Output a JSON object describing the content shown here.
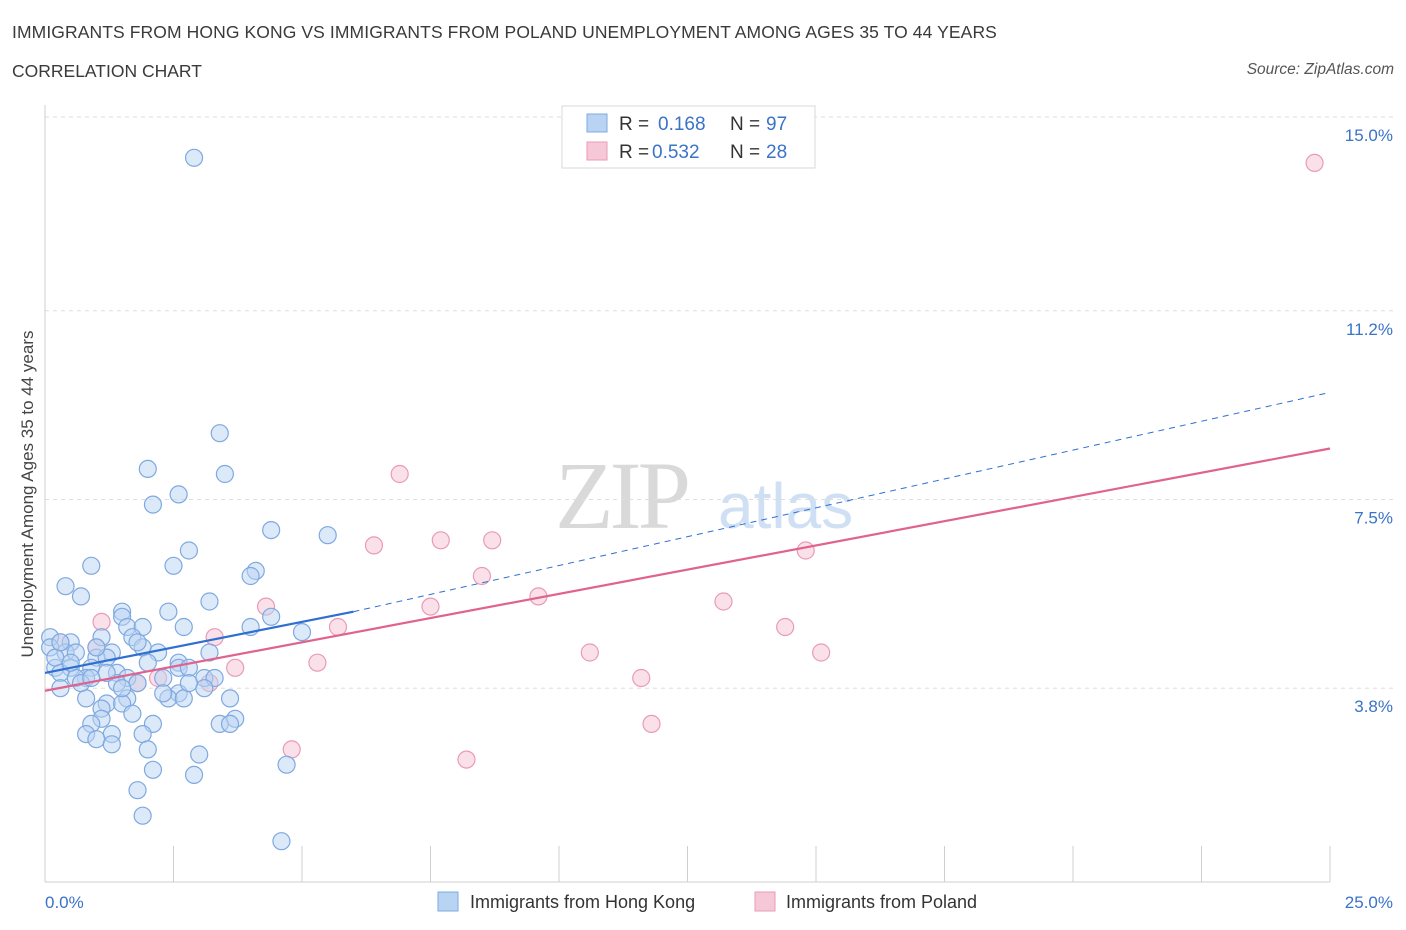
{
  "header": {
    "title": "IMMIGRANTS FROM HONG KONG VS IMMIGRANTS FROM POLAND UNEMPLOYMENT AMONG AGES 35 TO 44 YEARS",
    "subtitle": "CORRELATION CHART",
    "source": "Source: ZipAtlas.com"
  },
  "colors": {
    "hk_fill": "#b9d3f3",
    "hk_stroke": "#7ea9e0",
    "hk_line": "#2f6fd0",
    "pl_fill": "#f6c8d7",
    "pl_stroke": "#e99bb5",
    "pl_line": "#e0638e",
    "value_text": "#3a73c8"
  },
  "chart_data": {
    "type": "scatter",
    "xlabel": "",
    "ylabel": "Unemployment Among Ages 35 to 44 years",
    "xlim": [
      0,
      25
    ],
    "ylim": [
      0,
      15
    ],
    "x_tick_labels": [
      "0.0%",
      "25.0%"
    ],
    "y_ticks": [
      3.8,
      7.5,
      11.2,
      15.0
    ],
    "y_tick_labels": [
      "3.8%",
      "7.5%",
      "11.2%",
      "15.0%"
    ],
    "grid": true,
    "watermark": {
      "zip": "ZIP",
      "atlas": "atlas"
    },
    "legend_stats": [
      {
        "r_label": "R =",
        "r_value": "0.168",
        "n_label": "N =",
        "n_value": "97"
      },
      {
        "r_label": "R =",
        "r_value": "0.532",
        "n_label": "N =",
        "n_value": "28"
      }
    ],
    "series": [
      {
        "name": "Immigrants from Hong Kong",
        "points": [
          [
            2.9,
            14.2
          ],
          [
            3.4,
            8.8
          ],
          [
            2.0,
            8.1
          ],
          [
            3.5,
            8.0
          ],
          [
            2.6,
            7.6
          ],
          [
            2.1,
            7.4
          ],
          [
            4.4,
            6.9
          ],
          [
            5.5,
            6.8
          ],
          [
            2.8,
            6.5
          ],
          [
            0.9,
            6.2
          ],
          [
            2.5,
            6.2
          ],
          [
            4.1,
            6.1
          ],
          [
            4.0,
            6.0
          ],
          [
            0.4,
            5.8
          ],
          [
            0.7,
            5.6
          ],
          [
            3.2,
            5.5
          ],
          [
            1.5,
            5.3
          ],
          [
            2.4,
            5.3
          ],
          [
            1.5,
            5.2
          ],
          [
            4.4,
            5.2
          ],
          [
            1.6,
            5.0
          ],
          [
            1.9,
            5.0
          ],
          [
            2.7,
            5.0
          ],
          [
            4.0,
            5.0
          ],
          [
            5.0,
            4.9
          ],
          [
            1.7,
            4.8
          ],
          [
            0.1,
            4.8
          ],
          [
            1.1,
            4.8
          ],
          [
            0.5,
            4.7
          ],
          [
            0.1,
            4.6
          ],
          [
            0.4,
            4.5
          ],
          [
            0.6,
            4.5
          ],
          [
            1.3,
            4.5
          ],
          [
            1.9,
            4.6
          ],
          [
            2.2,
            4.5
          ],
          [
            3.2,
            4.5
          ],
          [
            1.0,
            4.4
          ],
          [
            1.2,
            4.4
          ],
          [
            2.6,
            4.3
          ],
          [
            0.2,
            4.2
          ],
          [
            0.5,
            4.2
          ],
          [
            0.9,
            4.2
          ],
          [
            1.4,
            4.1
          ],
          [
            2.6,
            4.2
          ],
          [
            2.8,
            4.2
          ],
          [
            0.3,
            4.1
          ],
          [
            0.8,
            4.0
          ],
          [
            1.6,
            4.0
          ],
          [
            3.1,
            4.0
          ],
          [
            3.3,
            4.0
          ],
          [
            0.6,
            4.0
          ],
          [
            1.4,
            3.9
          ],
          [
            1.8,
            3.9
          ],
          [
            0.3,
            3.8
          ],
          [
            3.1,
            3.8
          ],
          [
            2.6,
            3.7
          ],
          [
            2.4,
            3.6
          ],
          [
            0.8,
            3.6
          ],
          [
            1.6,
            3.6
          ],
          [
            2.7,
            3.6
          ],
          [
            3.6,
            3.6
          ],
          [
            1.2,
            3.5
          ],
          [
            1.5,
            3.5
          ],
          [
            1.1,
            3.4
          ],
          [
            1.7,
            3.3
          ],
          [
            1.1,
            3.2
          ],
          [
            0.9,
            3.1
          ],
          [
            2.1,
            3.1
          ],
          [
            3.4,
            3.1
          ],
          [
            3.7,
            3.2
          ],
          [
            3.6,
            3.1
          ],
          [
            0.8,
            2.9
          ],
          [
            1.3,
            2.9
          ],
          [
            1.9,
            2.9
          ],
          [
            1.0,
            2.8
          ],
          [
            1.3,
            2.7
          ],
          [
            2.0,
            2.6
          ],
          [
            3.0,
            2.5
          ],
          [
            4.7,
            2.3
          ],
          [
            2.1,
            2.2
          ],
          [
            2.9,
            2.1
          ],
          [
            1.8,
            1.8
          ],
          [
            1.9,
            1.3
          ],
          [
            4.6,
            0.8
          ],
          [
            0.2,
            4.4
          ],
          [
            0.5,
            4.3
          ],
          [
            1.0,
            4.6
          ],
          [
            2.3,
            4.0
          ],
          [
            0.7,
            3.9
          ],
          [
            1.2,
            4.1
          ],
          [
            2.0,
            4.3
          ],
          [
            0.3,
            4.7
          ],
          [
            1.5,
            3.8
          ],
          [
            2.8,
            3.9
          ],
          [
            0.9,
            4.0
          ],
          [
            1.8,
            4.7
          ],
          [
            2.3,
            3.7
          ]
        ]
      },
      {
        "name": "Immigrants from Poland",
        "points": [
          [
            24.7,
            14.1
          ],
          [
            6.9,
            8.0
          ],
          [
            6.4,
            6.6
          ],
          [
            7.7,
            6.7
          ],
          [
            8.7,
            6.7
          ],
          [
            14.8,
            6.5
          ],
          [
            8.5,
            6.0
          ],
          [
            9.6,
            5.6
          ],
          [
            7.5,
            5.4
          ],
          [
            13.2,
            5.5
          ],
          [
            4.3,
            5.4
          ],
          [
            1.1,
            5.1
          ],
          [
            14.4,
            5.0
          ],
          [
            5.7,
            5.0
          ],
          [
            3.3,
            4.8
          ],
          [
            10.6,
            4.5
          ],
          [
            15.1,
            4.5
          ],
          [
            0.3,
            4.7
          ],
          [
            1.0,
            4.6
          ],
          [
            5.3,
            4.3
          ],
          [
            3.7,
            4.2
          ],
          [
            2.2,
            4.0
          ],
          [
            11.6,
            4.0
          ],
          [
            1.8,
            3.9
          ],
          [
            3.2,
            3.9
          ],
          [
            11.8,
            3.1
          ],
          [
            4.8,
            2.6
          ],
          [
            8.2,
            2.4
          ]
        ]
      }
    ],
    "trend_lines": [
      {
        "series": "Immigrants from Hong Kong",
        "solid": [
          [
            0.0,
            4.1
          ],
          [
            6.0,
            5.3
          ]
        ],
        "dashed": [
          [
            6.0,
            5.3
          ],
          [
            25.0,
            9.6
          ]
        ]
      },
      {
        "series": "Immigrants from Poland",
        "solid": [
          [
            0.0,
            3.75
          ],
          [
            25.0,
            8.5
          ]
        ]
      }
    ]
  }
}
